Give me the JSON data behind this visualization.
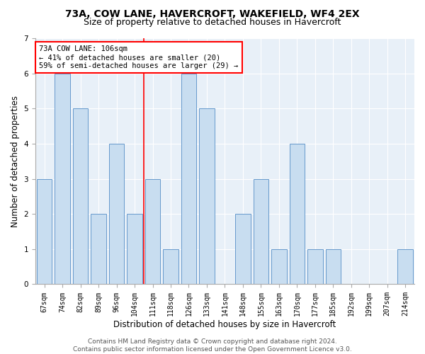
{
  "title1": "73A, COW LANE, HAVERCROFT, WAKEFIELD, WF4 2EX",
  "title2": "Size of property relative to detached houses in Havercroft",
  "xlabel": "Distribution of detached houses by size in Havercroft",
  "ylabel": "Number of detached properties",
  "categories": [
    "67sqm",
    "74sqm",
    "82sqm",
    "89sqm",
    "96sqm",
    "104sqm",
    "111sqm",
    "118sqm",
    "126sqm",
    "133sqm",
    "141sqm",
    "148sqm",
    "155sqm",
    "163sqm",
    "170sqm",
    "177sqm",
    "185sqm",
    "192sqm",
    "199sqm",
    "207sqm",
    "214sqm"
  ],
  "values": [
    3,
    6,
    5,
    2,
    4,
    2,
    3,
    1,
    6,
    5,
    0,
    2,
    3,
    1,
    4,
    1,
    1,
    0,
    0,
    0,
    1
  ],
  "bar_color": "#c8ddf0",
  "bar_edgecolor": "#6699cc",
  "red_line_after_index": 5,
  "annotation_text": "73A COW LANE: 106sqm\n← 41% of detached houses are smaller (20)\n59% of semi-detached houses are larger (29) →",
  "annotation_box_facecolor": "white",
  "annotation_box_edgecolor": "red",
  "footer": "Contains HM Land Registry data © Crown copyright and database right 2024.\nContains public sector information licensed under the Open Government Licence v3.0.",
  "ylim": [
    0,
    7
  ],
  "yticks": [
    0,
    1,
    2,
    3,
    4,
    5,
    6,
    7
  ],
  "plot_bg_color": "#e8f0f8",
  "grid_color": "#ffffff",
  "fig_bg_color": "#ffffff",
  "title1_fontsize": 10,
  "title2_fontsize": 9,
  "xlabel_fontsize": 8.5,
  "ylabel_fontsize": 8.5,
  "tick_fontsize": 7,
  "annotation_fontsize": 7.5,
  "footer_fontsize": 6.5
}
